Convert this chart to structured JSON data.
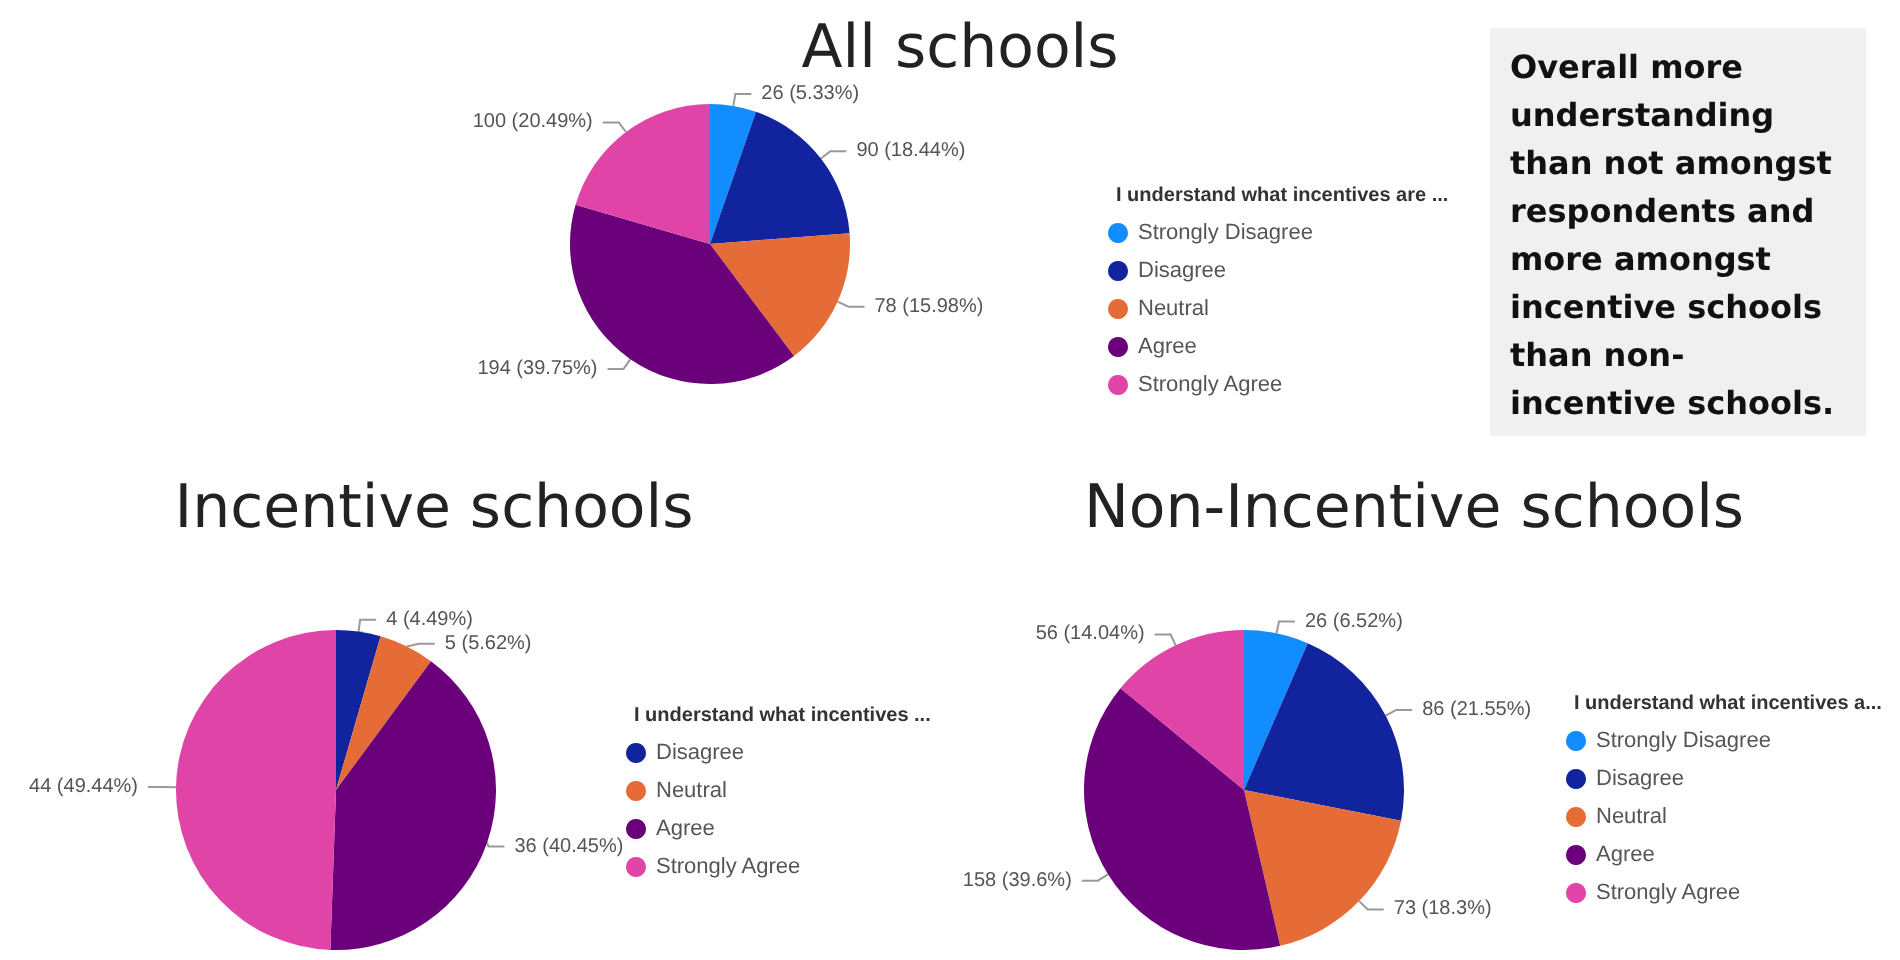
{
  "chart_data": [
    {
      "type": "pie",
      "title": "All schools",
      "legend_title": "I understand what incentives are ...",
      "legend": "right",
      "categories": [
        "Strongly Disagree",
        "Disagree",
        "Neutral",
        "Agree",
        "Strongly Agree"
      ],
      "values": [
        26,
        90,
        78,
        194,
        100
      ],
      "colors": [
        "#118dff",
        "#12239e",
        "#e66c37",
        "#6b007b",
        "#e044a7"
      ],
      "value_labels": [
        "26 (5.33%)",
        "90 (18.44%)",
        "78 (15.98%)",
        "194 (39.75%)",
        "100 (20.49%)"
      ]
    },
    {
      "type": "other",
      "annotations": [
        "Overall more understanding than not amongst respondents and more amongst incentive schools than non-incentive schools."
      ]
    },
    {
      "type": "pie",
      "title": "Incentive schools",
      "legend_title": "I understand what incentives ...",
      "legend": "right",
      "categories": [
        "Disagree",
        "Neutral",
        "Agree",
        "Strongly Agree"
      ],
      "values": [
        4,
        5,
        36,
        44
      ],
      "colors": [
        "#12239e",
        "#e66c37",
        "#6b007b",
        "#e044a7"
      ],
      "value_labels": [
        "4 (4.49%)",
        "5 (5.62%)",
        "36 (40.45%)",
        "44 (49.44%)"
      ]
    },
    {
      "type": "pie",
      "title": "Non-Incentive schools",
      "legend_title": "I understand what incentives a...",
      "legend": "right",
      "categories": [
        "Strongly Disagree",
        "Disagree",
        "Neutral",
        "Agree",
        "Strongly Agree"
      ],
      "values": [
        26,
        86,
        73,
        158,
        56
      ],
      "colors": [
        "#118dff",
        "#12239e",
        "#e66c37",
        "#6b007b",
        "#e044a7"
      ],
      "value_labels": [
        "26 (6.52%)",
        "86 (21.55%)",
        "73 (18.3%)",
        "158 (39.6%)",
        "56 (14.04%)"
      ]
    }
  ]
}
